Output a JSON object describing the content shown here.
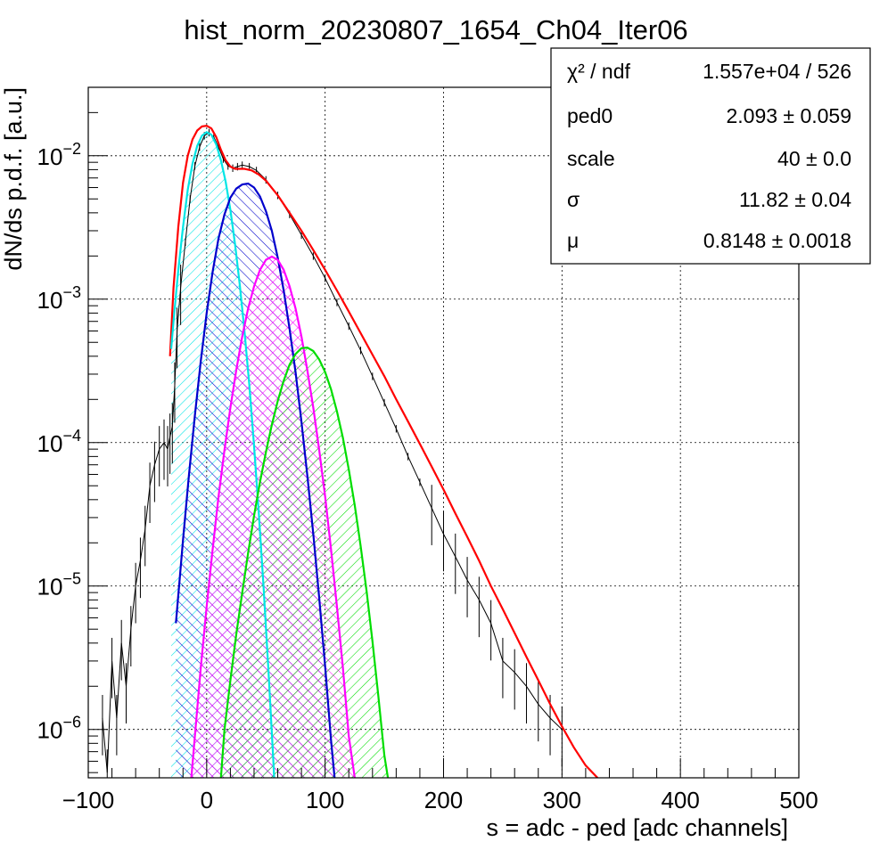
{
  "chart_data": {
    "type": "line",
    "title": "hist_norm_20230807_1654_Ch04_Iter06",
    "xlabel": "s = adc - ped [adc channels]",
    "ylabel": "dN/ds p.d.f. [a.u.]",
    "xlim": [
      -100,
      500
    ],
    "ylim": [
      4.6e-07,
      0.03
    ],
    "yscale": "log",
    "grid": true,
    "legend_position": "top-right",
    "x_ticks": [
      "−100",
      "0",
      "100",
      "200",
      "300",
      "400",
      "500"
    ],
    "x_tick_values": [
      -100,
      0,
      100,
      200,
      300,
      400,
      500
    ],
    "y_ticks": [
      {
        "base": "10",
        "exp": "−2",
        "value": 0.01
      },
      {
        "base": "10",
        "exp": "−3",
        "value": 0.001
      },
      {
        "base": "10",
        "exp": "−4",
        "value": 0.0001
      },
      {
        "base": "10",
        "exp": "−5",
        "value": 1e-05
      },
      {
        "base": "10",
        "exp": "−6",
        "value": 1e-06
      }
    ],
    "stats": [
      {
        "label": "χ² / ndf",
        "value": "1.557e+04 / 526"
      },
      {
        "label": "ped0",
        "value": "2.093 ± 0.059"
      },
      {
        "label": "scale",
        "value": "40 ± 0.0"
      },
      {
        "label": "σ",
        "value": "11.82 ± 0.04"
      },
      {
        "label": "μ",
        "value": "0.8148 ± 0.0018"
      }
    ],
    "histogram": {
      "color": "#000000",
      "points": [
        [
          -88,
          1.2e-06
        ],
        [
          -84,
          5e-07
        ],
        [
          -80,
          3e-06
        ],
        [
          -76,
          1.2e-06
        ],
        [
          -72,
          4e-06
        ],
        [
          -68,
          2e-06
        ],
        [
          -64,
          5e-06
        ],
        [
          -60,
          1e-05
        ],
        [
          -56,
          1.5e-05
        ],
        [
          -52,
          2.5e-05
        ],
        [
          -48,
          5e-05
        ],
        [
          -44,
          7e-05
        ],
        [
          -40,
          9e-05
        ],
        [
          -36,
          0.0001
        ],
        [
          -33,
          9e-05
        ],
        [
          -31,
          0.00011
        ],
        [
          -29,
          0.00013
        ],
        [
          -27,
          0.00025
        ],
        [
          -25,
          0.0006
        ],
        [
          -22,
          0.0012
        ],
        [
          -18,
          0.0025
        ],
        [
          -14,
          0.005
        ],
        [
          -10,
          0.0085
        ],
        [
          -6,
          0.0115
        ],
        [
          -2,
          0.0138
        ],
        [
          2,
          0.0145
        ],
        [
          6,
          0.0135
        ],
        [
          10,
          0.0115
        ],
        [
          14,
          0.0095
        ],
        [
          18,
          0.0085
        ],
        [
          22,
          0.0082
        ],
        [
          26,
          0.0084
        ],
        [
          30,
          0.0086
        ],
        [
          36,
          0.0084
        ],
        [
          42,
          0.0079
        ],
        [
          50,
          0.0068
        ],
        [
          60,
          0.0053
        ],
        [
          70,
          0.0039
        ],
        [
          80,
          0.0028
        ],
        [
          90,
          0.002
        ],
        [
          100,
          0.0014
        ],
        [
          110,
          0.00095
        ],
        [
          120,
          0.00065
        ],
        [
          130,
          0.00044
        ],
        [
          140,
          0.00029
        ],
        [
          150,
          0.00019
        ],
        [
          160,
          0.000125
        ],
        [
          170,
          8e-05
        ],
        [
          180,
          5.3e-05
        ],
        [
          190,
          3.5e-05
        ],
        [
          200,
          2.3e-05
        ],
        [
          210,
          1.6e-05
        ],
        [
          220,
          1.1e-05
        ],
        [
          230,
          8e-06
        ],
        [
          240,
          5.5e-06
        ],
        [
          250,
          3e-06
        ],
        [
          260,
          2.5e-06
        ],
        [
          270,
          2e-06
        ],
        [
          280,
          1.5e-06
        ],
        [
          290,
          1.2e-06
        ],
        [
          300,
          1e-06
        ]
      ]
    },
    "series": [
      {
        "color": "#ff0000",
        "fill": false,
        "points": [
          [
            -31,
            0.0004
          ],
          [
            -28,
            0.0012
          ],
          [
            -24,
            0.0032
          ],
          [
            -20,
            0.0065
          ],
          [
            -16,
            0.01
          ],
          [
            -12,
            0.013
          ],
          [
            -8,
            0.015
          ],
          [
            -4,
            0.016
          ],
          [
            0,
            0.0162
          ],
          [
            4,
            0.0155
          ],
          [
            8,
            0.0135
          ],
          [
            12,
            0.011
          ],
          [
            16,
            0.0093
          ],
          [
            20,
            0.0084
          ],
          [
            24,
            0.0081
          ],
          [
            28,
            0.0081
          ],
          [
            32,
            0.0081
          ],
          [
            38,
            0.0079
          ],
          [
            44,
            0.0074
          ],
          [
            50,
            0.0067
          ],
          [
            60,
            0.0053
          ],
          [
            70,
            0.004
          ],
          [
            80,
            0.003
          ],
          [
            90,
            0.0022
          ],
          [
            100,
            0.0016
          ],
          [
            110,
            0.00115
          ],
          [
            120,
            0.00082
          ],
          [
            130,
            0.00058
          ],
          [
            140,
            0.00041
          ],
          [
            150,
            0.00029
          ],
          [
            160,
            0.0002
          ],
          [
            170,
            0.00014
          ],
          [
            180,
            9.8e-05
          ],
          [
            190,
            6.8e-05
          ],
          [
            200,
            4.7e-05
          ],
          [
            210,
            3.2e-05
          ],
          [
            220,
            2.2e-05
          ],
          [
            230,
            1.5e-05
          ],
          [
            240,
            1e-05
          ],
          [
            250,
            6.9e-06
          ],
          [
            260,
            4.7e-06
          ],
          [
            270,
            3.2e-06
          ],
          [
            280,
            2.2e-06
          ],
          [
            290,
            1.5e-06
          ],
          [
            300,
            1.05e-06
          ],
          [
            310,
            7.5e-07
          ],
          [
            320,
            5.6e-07
          ],
          [
            330,
            4.6e-07
          ]
        ]
      },
      {
        "color": "#00e5e5",
        "fill": true,
        "hatch": "up",
        "points": [
          [
            -30,
            0.00045
          ],
          [
            -28,
            0.0007
          ],
          [
            -24,
            0.0016
          ],
          [
            -20,
            0.0032
          ],
          [
            -16,
            0.0058
          ],
          [
            -12,
            0.0088
          ],
          [
            -8,
            0.0117
          ],
          [
            -4,
            0.0138
          ],
          [
            0,
            0.0146
          ],
          [
            4,
            0.014
          ],
          [
            8,
            0.012
          ],
          [
            12,
            0.0093
          ],
          [
            16,
            0.0066
          ],
          [
            20,
            0.0042
          ],
          [
            24,
            0.0024
          ],
          [
            28,
            0.00125
          ],
          [
            32,
            0.00059
          ],
          [
            36,
            0.00025
          ],
          [
            40,
            9.4e-05
          ],
          [
            44,
            3.2e-05
          ],
          [
            48,
            9.9e-06
          ],
          [
            52,
            2.7e-06
          ],
          [
            56,
            6.7e-07
          ],
          [
            57,
            4.6e-07
          ]
        ]
      },
      {
        "color": "#0000cc",
        "fill": true,
        "hatch": "down",
        "points": [
          [
            -26,
            5.5e-06
          ],
          [
            -20,
            2.1e-05
          ],
          [
            -15,
            5.9e-05
          ],
          [
            -10,
            0.000155
          ],
          [
            -5,
            0.00037
          ],
          [
            0,
            0.0008
          ],
          [
            5,
            0.00155
          ],
          [
            10,
            0.00265
          ],
          [
            15,
            0.0039
          ],
          [
            20,
            0.0051
          ],
          [
            25,
            0.0059
          ],
          [
            30,
            0.0063
          ],
          [
            35,
            0.0064
          ],
          [
            40,
            0.006
          ],
          [
            45,
            0.0052
          ],
          [
            50,
            0.0041
          ],
          [
            55,
            0.003
          ],
          [
            60,
            0.00195
          ],
          [
            65,
            0.00115
          ],
          [
            70,
            0.00062
          ],
          [
            75,
            0.00031
          ],
          [
            80,
            0.00014
          ],
          [
            85,
            5.9e-05
          ],
          [
            90,
            2.3e-05
          ],
          [
            95,
            8.3e-06
          ],
          [
            100,
            2.75e-06
          ],
          [
            105,
            8.4e-07
          ],
          [
            108,
            4.6e-07
          ]
        ]
      },
      {
        "color": "#ff00ff",
        "fill": true,
        "hatch": "cross",
        "points": [
          [
            -13,
            4.6e-07
          ],
          [
            -10,
            9e-07
          ],
          [
            -5,
            2.7e-06
          ],
          [
            0,
            7.2e-06
          ],
          [
            5,
            1.8e-05
          ],
          [
            10,
            4.2e-05
          ],
          [
            15,
            8.9e-05
          ],
          [
            20,
            0.000175
          ],
          [
            25,
            0.00032
          ],
          [
            30,
            0.00055
          ],
          [
            35,
            0.00086
          ],
          [
            40,
            0.00123
          ],
          [
            45,
            0.0016
          ],
          [
            50,
            0.00188
          ],
          [
            55,
            0.00198
          ],
          [
            60,
            0.00188
          ],
          [
            65,
            0.0016
          ],
          [
            70,
            0.00123
          ],
          [
            75,
            0.00086
          ],
          [
            80,
            0.00055
          ],
          [
            85,
            0.00032
          ],
          [
            90,
            0.000175
          ],
          [
            95,
            8.9e-05
          ],
          [
            100,
            4.2e-05
          ],
          [
            105,
            1.8e-05
          ],
          [
            110,
            7.2e-06
          ],
          [
            115,
            2.7e-06
          ],
          [
            120,
            9e-07
          ],
          [
            125,
            4.6e-07
          ]
        ]
      },
      {
        "color": "#00dd00",
        "fill": true,
        "hatch": "up",
        "points": [
          [
            12,
            4.6e-07
          ],
          [
            15,
            1e-06
          ],
          [
            20,
            2.2e-06
          ],
          [
            25,
            4.6e-06
          ],
          [
            30,
            9e-06
          ],
          [
            35,
            1.7e-05
          ],
          [
            40,
            3.1e-05
          ],
          [
            45,
            5.3e-05
          ],
          [
            50,
            8.6e-05
          ],
          [
            55,
            0.000133
          ],
          [
            60,
            0.000195
          ],
          [
            65,
            0.00027
          ],
          [
            70,
            0.00035
          ],
          [
            75,
            0.000415
          ],
          [
            80,
            0.000455
          ],
          [
            85,
            0.00046
          ],
          [
            90,
            0.000435
          ],
          [
            95,
            0.00038
          ],
          [
            100,
            0.00031
          ],
          [
            105,
            0.000235
          ],
          [
            110,
            0.000165
          ],
          [
            115,
            0.000108
          ],
          [
            120,
            6.5e-05
          ],
          [
            125,
            3.65e-05
          ],
          [
            130,
            1.9e-05
          ],
          [
            135,
            9.2e-06
          ],
          [
            140,
            4.1e-06
          ],
          [
            145,
            1.7e-06
          ],
          [
            150,
            6.6e-07
          ],
          [
            153,
            4.6e-07
          ]
        ]
      }
    ]
  }
}
